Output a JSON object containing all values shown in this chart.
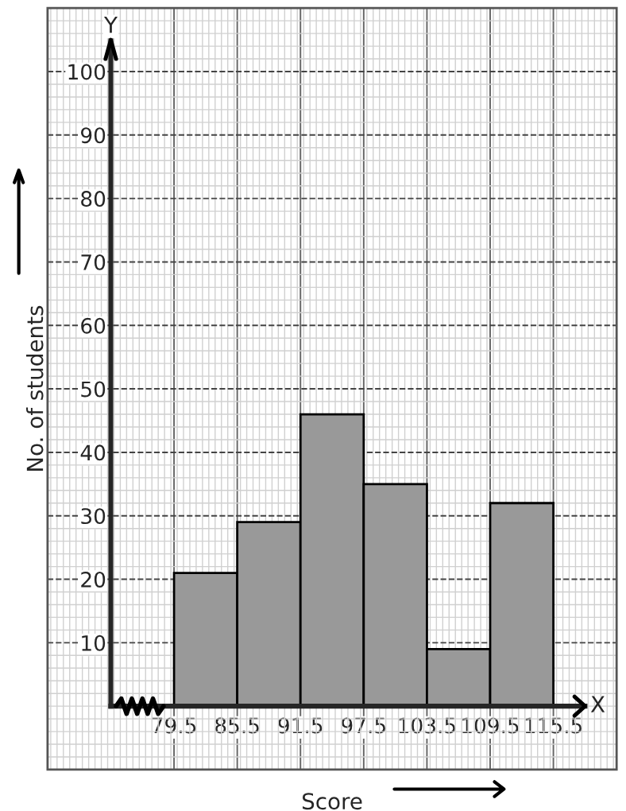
{
  "chart_data": {
    "type": "histogram",
    "xlabel": "Score",
    "ylabel": "No. of students",
    "bins": [
      79.5,
      85.5,
      91.5,
      97.5,
      103.5,
      109.5,
      115.5
    ],
    "values": [
      21,
      29,
      46,
      35,
      9,
      32
    ],
    "color": "#999999",
    "xlim": [
      67.5,
      121.5
    ],
    "ylim": [
      -10,
      110
    ],
    "xticks": [
      79.5,
      85.5,
      91.5,
      97.5,
      103.5,
      109.5,
      115.5
    ],
    "yticks": [
      10,
      20,
      30,
      40,
      50,
      60,
      70,
      80,
      90,
      100
    ],
    "annotations": [
      "X",
      "Y"
    ],
    "grid": true
  }
}
